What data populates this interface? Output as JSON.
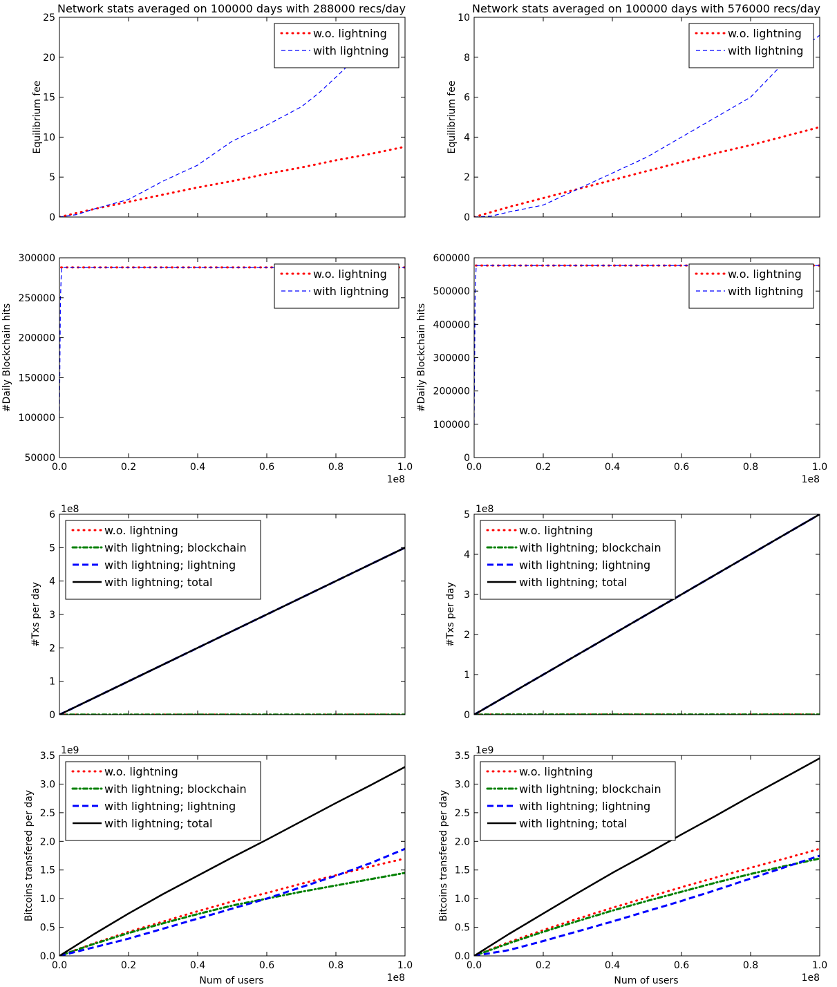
{
  "figure": {
    "left_title": "Network stats averaged on 100000 days with 288000 recs/day",
    "right_title": "Network stats averaged on 100000 days with 576000 recs/day",
    "xlabel": "Num of users",
    "x_multiplier": "1e8"
  },
  "colors": {
    "w_o_lightning": "#ff0000",
    "with_lightning": "#0000ff",
    "blockchain": "#008000",
    "total": "#000000"
  },
  "chart_data": [
    {
      "id": "fee-left",
      "type": "line",
      "column": "left",
      "row": 0,
      "ylabel": "Equilibrium fee",
      "xlim": [
        0,
        1.0
      ],
      "ylim": [
        0,
        25
      ],
      "xticks": [
        "0.0",
        "0.2",
        "0.4",
        "0.6",
        "0.8",
        "1.0"
      ],
      "show_xticklabels": false,
      "yticks": [
        "0",
        "5",
        "10",
        "15",
        "20",
        "25"
      ],
      "offset_text": "",
      "x_offset_text": "",
      "legend": "top-right",
      "series": [
        {
          "name": "w.o. lightning",
          "style": "dots",
          "color": "#ff0000",
          "x": [
            0,
            0.1,
            0.2,
            0.3,
            0.4,
            0.5,
            0.6,
            0.7,
            0.8,
            0.9,
            1.0
          ],
          "y": [
            0,
            1.0,
            1.9,
            2.8,
            3.7,
            4.5,
            5.4,
            6.2,
            7.1,
            7.9,
            8.8
          ]
        },
        {
          "name": "with lightning",
          "style": "dashed",
          "color": "#0000ff",
          "x": [
            0,
            0.05,
            0.1,
            0.2,
            0.3,
            0.4,
            0.45,
            0.5,
            0.6,
            0.7,
            0.75,
            0.8,
            0.86
          ],
          "y": [
            0,
            0.3,
            1.0,
            2.2,
            4.5,
            6.5,
            8.0,
            9.5,
            11.5,
            13.8,
            15.5,
            17.5,
            20
          ]
        }
      ]
    },
    {
      "id": "hits-left",
      "type": "line",
      "column": "left",
      "row": 1,
      "ylabel": "#Daily Blockchain hits",
      "xlim": [
        0,
        1.0
      ],
      "ylim": [
        50000,
        300000
      ],
      "xticks": [
        "0.0",
        "0.2",
        "0.4",
        "0.6",
        "0.8",
        "1.0"
      ],
      "show_xticklabels": true,
      "yticks": [
        "50000",
        "100000",
        "150000",
        "200000",
        "250000",
        "300000"
      ],
      "offset_text": "",
      "x_offset_text": "1e8",
      "legend": "top-right",
      "series": [
        {
          "name": "w.o. lightning",
          "style": "dots",
          "color": "#ff0000",
          "x": [
            0.005,
            1.0
          ],
          "y": [
            288000,
            288000
          ]
        },
        {
          "name": "with lightning",
          "style": "dashed",
          "color": "#0000ff",
          "x": [
            0,
            0.003,
            0.006,
            1.0
          ],
          "y": [
            100000,
            250000,
            288000,
            288000
          ]
        }
      ]
    },
    {
      "id": "txs-left",
      "type": "line",
      "column": "left",
      "row": 2,
      "ylabel": "#Txs per day",
      "xlim": [
        0,
        1.0
      ],
      "ylim": [
        0,
        6
      ],
      "xticks": [
        "0.0",
        "0.2",
        "0.4",
        "0.6",
        "0.8",
        "1.0"
      ],
      "show_xticklabels": false,
      "yticks": [
        "0",
        "1",
        "2",
        "3",
        "4",
        "5",
        "6"
      ],
      "offset_text": "1e8",
      "x_offset_text": "",
      "legend": "top-left",
      "series": [
        {
          "name": "w.o. lightning",
          "style": "dots",
          "color": "#ff0000",
          "x": [
            0,
            1.0
          ],
          "y": [
            0.003,
            0.003
          ]
        },
        {
          "name": "with lightning; blockchain",
          "style": "dashdot",
          "color": "#008000",
          "x": [
            0,
            1.0
          ],
          "y": [
            0.003,
            0.003
          ]
        },
        {
          "name": "with lightning; lightning",
          "style": "dashed-thick",
          "color": "#0000ff",
          "x": [
            0,
            1.0
          ],
          "y": [
            0,
            5.0
          ]
        },
        {
          "name": "with lightning; total",
          "style": "solid",
          "color": "#000000",
          "x": [
            0,
            1.0
          ],
          "y": [
            0,
            5.0
          ]
        }
      ]
    },
    {
      "id": "btc-left",
      "type": "line",
      "column": "left",
      "row": 3,
      "ylabel": "Bitcoins transfered per day",
      "xlim": [
        0,
        1.0
      ],
      "ylim": [
        0,
        3.5
      ],
      "xticks": [
        "0.0",
        "0.2",
        "0.4",
        "0.6",
        "0.8",
        "1.0"
      ],
      "show_xticklabels": true,
      "yticks": [
        "0.0",
        "0.5",
        "1.0",
        "1.5",
        "2.0",
        "2.5",
        "3.0",
        "3.5"
      ],
      "offset_text": "1e9",
      "x_offset_text": "1e8",
      "legend": "top-left",
      "series": [
        {
          "name": "w.o. lightning",
          "style": "dots",
          "color": "#ff0000",
          "x": [
            0,
            0.1,
            0.2,
            0.3,
            0.4,
            0.5,
            0.6,
            0.7,
            0.8,
            0.9,
            1.0
          ],
          "y": [
            0,
            0.22,
            0.42,
            0.6,
            0.78,
            0.95,
            1.1,
            1.26,
            1.41,
            1.56,
            1.7
          ]
        },
        {
          "name": "with lightning; blockchain",
          "style": "dashdot",
          "color": "#008000",
          "x": [
            0,
            0.1,
            0.2,
            0.3,
            0.4,
            0.5,
            0.6,
            0.7,
            0.8,
            0.9,
            1.0
          ],
          "y": [
            0,
            0.21,
            0.4,
            0.57,
            0.73,
            0.88,
            1.0,
            1.12,
            1.23,
            1.34,
            1.45
          ]
        },
        {
          "name": "with lightning; lightning",
          "style": "dashed-thick",
          "color": "#0000ff",
          "x": [
            0,
            0.2,
            0.4,
            0.6,
            0.8,
            0.9,
            1.0
          ],
          "y": [
            0,
            0.3,
            0.65,
            1.0,
            1.4,
            1.62,
            1.87
          ]
        },
        {
          "name": "with lightning; total",
          "style": "solid",
          "color": "#000000",
          "x": [
            0,
            0.1,
            0.2,
            0.3,
            0.4,
            0.5,
            0.6,
            0.7,
            0.8,
            0.9,
            1.0
          ],
          "y": [
            0,
            0.38,
            0.74,
            1.08,
            1.4,
            1.72,
            2.03,
            2.35,
            2.67,
            2.98,
            3.3
          ]
        }
      ]
    },
    {
      "id": "fee-right",
      "type": "line",
      "column": "right",
      "row": 0,
      "ylabel": "Equilibrium fee",
      "xlim": [
        0,
        1.0
      ],
      "ylim": [
        0,
        10
      ],
      "xticks": [
        "0.0",
        "0.2",
        "0.4",
        "0.6",
        "0.8",
        "1.0"
      ],
      "show_xticklabels": false,
      "yticks": [
        "0",
        "2",
        "4",
        "6",
        "8",
        "10"
      ],
      "offset_text": "",
      "x_offset_text": "",
      "legend": "top-right",
      "series": [
        {
          "name": "w.o. lightning",
          "style": "dots",
          "color": "#ff0000",
          "x": [
            0,
            0.1,
            0.2,
            0.3,
            0.4,
            0.5,
            0.6,
            0.7,
            0.8,
            0.9,
            1.0
          ],
          "y": [
            0,
            0.5,
            0.95,
            1.4,
            1.85,
            2.3,
            2.75,
            3.2,
            3.6,
            4.05,
            4.5
          ]
        },
        {
          "name": "with lightning",
          "style": "dashed",
          "color": "#0000ff",
          "x": [
            0,
            0.05,
            0.1,
            0.2,
            0.3,
            0.4,
            0.5,
            0.6,
            0.7,
            0.8,
            0.9,
            1.0
          ],
          "y": [
            0,
            0.05,
            0.25,
            0.6,
            1.4,
            2.2,
            3.0,
            4.0,
            5.0,
            6.0,
            7.8,
            9.1
          ]
        }
      ]
    },
    {
      "id": "hits-right",
      "type": "line",
      "column": "right",
      "row": 1,
      "ylabel": "#Daily Blockchain hits",
      "xlim": [
        0,
        1.0
      ],
      "ylim": [
        0,
        600000
      ],
      "xticks": [
        "0.0",
        "0.2",
        "0.4",
        "0.6",
        "0.8",
        "1.0"
      ],
      "show_xticklabels": true,
      "yticks": [
        "0",
        "100000",
        "200000",
        "300000",
        "400000",
        "500000",
        "600000"
      ],
      "offset_text": "",
      "x_offset_text": "1e8",
      "legend": "top-right",
      "series": [
        {
          "name": "w.o. lightning",
          "style": "dots",
          "color": "#ff0000",
          "x": [
            0.005,
            1.0
          ],
          "y": [
            577000,
            577000
          ]
        },
        {
          "name": "with lightning",
          "style": "dashed",
          "color": "#0000ff",
          "x": [
            0,
            0.003,
            0.006,
            1.0
          ],
          "y": [
            100000,
            500000,
            577000,
            577000
          ]
        }
      ]
    },
    {
      "id": "txs-right",
      "type": "line",
      "column": "right",
      "row": 2,
      "ylabel": "#Txs per day",
      "xlim": [
        0,
        1.0
      ],
      "ylim": [
        0,
        5
      ],
      "xticks": [
        "0.0",
        "0.2",
        "0.4",
        "0.6",
        "0.8",
        "1.0"
      ],
      "show_xticklabels": false,
      "yticks": [
        "0",
        "1",
        "2",
        "3",
        "4",
        "5"
      ],
      "offset_text": "1e8",
      "x_offset_text": "",
      "legend": "top-left",
      "series": [
        {
          "name": "w.o. lightning",
          "style": "dots",
          "color": "#ff0000",
          "x": [
            0,
            1.0
          ],
          "y": [
            0.006,
            0.006
          ]
        },
        {
          "name": "with lightning; blockchain",
          "style": "dashdot",
          "color": "#008000",
          "x": [
            0,
            1.0
          ],
          "y": [
            0.006,
            0.006
          ]
        },
        {
          "name": "with lightning; lightning",
          "style": "dashed-thick",
          "color": "#0000ff",
          "x": [
            0,
            1.0
          ],
          "y": [
            0,
            5.0
          ]
        },
        {
          "name": "with lightning; total",
          "style": "solid",
          "color": "#000000",
          "x": [
            0,
            1.0
          ],
          "y": [
            0,
            5.0
          ]
        }
      ]
    },
    {
      "id": "btc-right",
      "type": "line",
      "column": "right",
      "row": 3,
      "ylabel": "Bitcoins transfered per day",
      "xlim": [
        0,
        1.0
      ],
      "ylim": [
        0,
        3.5
      ],
      "xticks": [
        "0.0",
        "0.2",
        "0.4",
        "0.6",
        "0.8",
        "1.0"
      ],
      "show_xticklabels": true,
      "yticks": [
        "0.0",
        "0.5",
        "1.0",
        "1.5",
        "2.0",
        "2.5",
        "3.0",
        "3.5"
      ],
      "offset_text": "1e9",
      "x_offset_text": "1e8",
      "legend": "top-left",
      "series": [
        {
          "name": "w.o. lightning",
          "style": "dots",
          "color": "#ff0000",
          "x": [
            0,
            0.1,
            0.2,
            0.3,
            0.4,
            0.5,
            0.6,
            0.7,
            0.8,
            0.9,
            1.0
          ],
          "y": [
            0,
            0.24,
            0.45,
            0.65,
            0.84,
            1.02,
            1.2,
            1.37,
            1.54,
            1.7,
            1.87
          ]
        },
        {
          "name": "with lightning; blockchain",
          "style": "dashdot",
          "color": "#008000",
          "x": [
            0,
            0.1,
            0.2,
            0.3,
            0.4,
            0.5,
            0.6,
            0.7,
            0.8,
            0.9,
            1.0
          ],
          "y": [
            0,
            0.22,
            0.42,
            0.61,
            0.79,
            0.96,
            1.12,
            1.28,
            1.43,
            1.57,
            1.7
          ]
        },
        {
          "name": "with lightning; lightning",
          "style": "dashed-thick",
          "color": "#0000ff",
          "x": [
            0,
            0.1,
            0.2,
            0.3,
            0.4,
            0.5,
            0.6,
            0.7,
            0.8,
            0.9,
            1.0
          ],
          "y": [
            0,
            0.1,
            0.26,
            0.43,
            0.6,
            0.78,
            0.96,
            1.15,
            1.35,
            1.55,
            1.75
          ]
        },
        {
          "name": "with lightning; total",
          "style": "solid",
          "color": "#000000",
          "x": [
            0,
            0.1,
            0.2,
            0.3,
            0.4,
            0.5,
            0.6,
            0.7,
            0.8,
            0.9,
            1.0
          ],
          "y": [
            0,
            0.38,
            0.74,
            1.1,
            1.45,
            1.78,
            2.12,
            2.45,
            2.79,
            3.12,
            3.45
          ]
        }
      ]
    }
  ]
}
